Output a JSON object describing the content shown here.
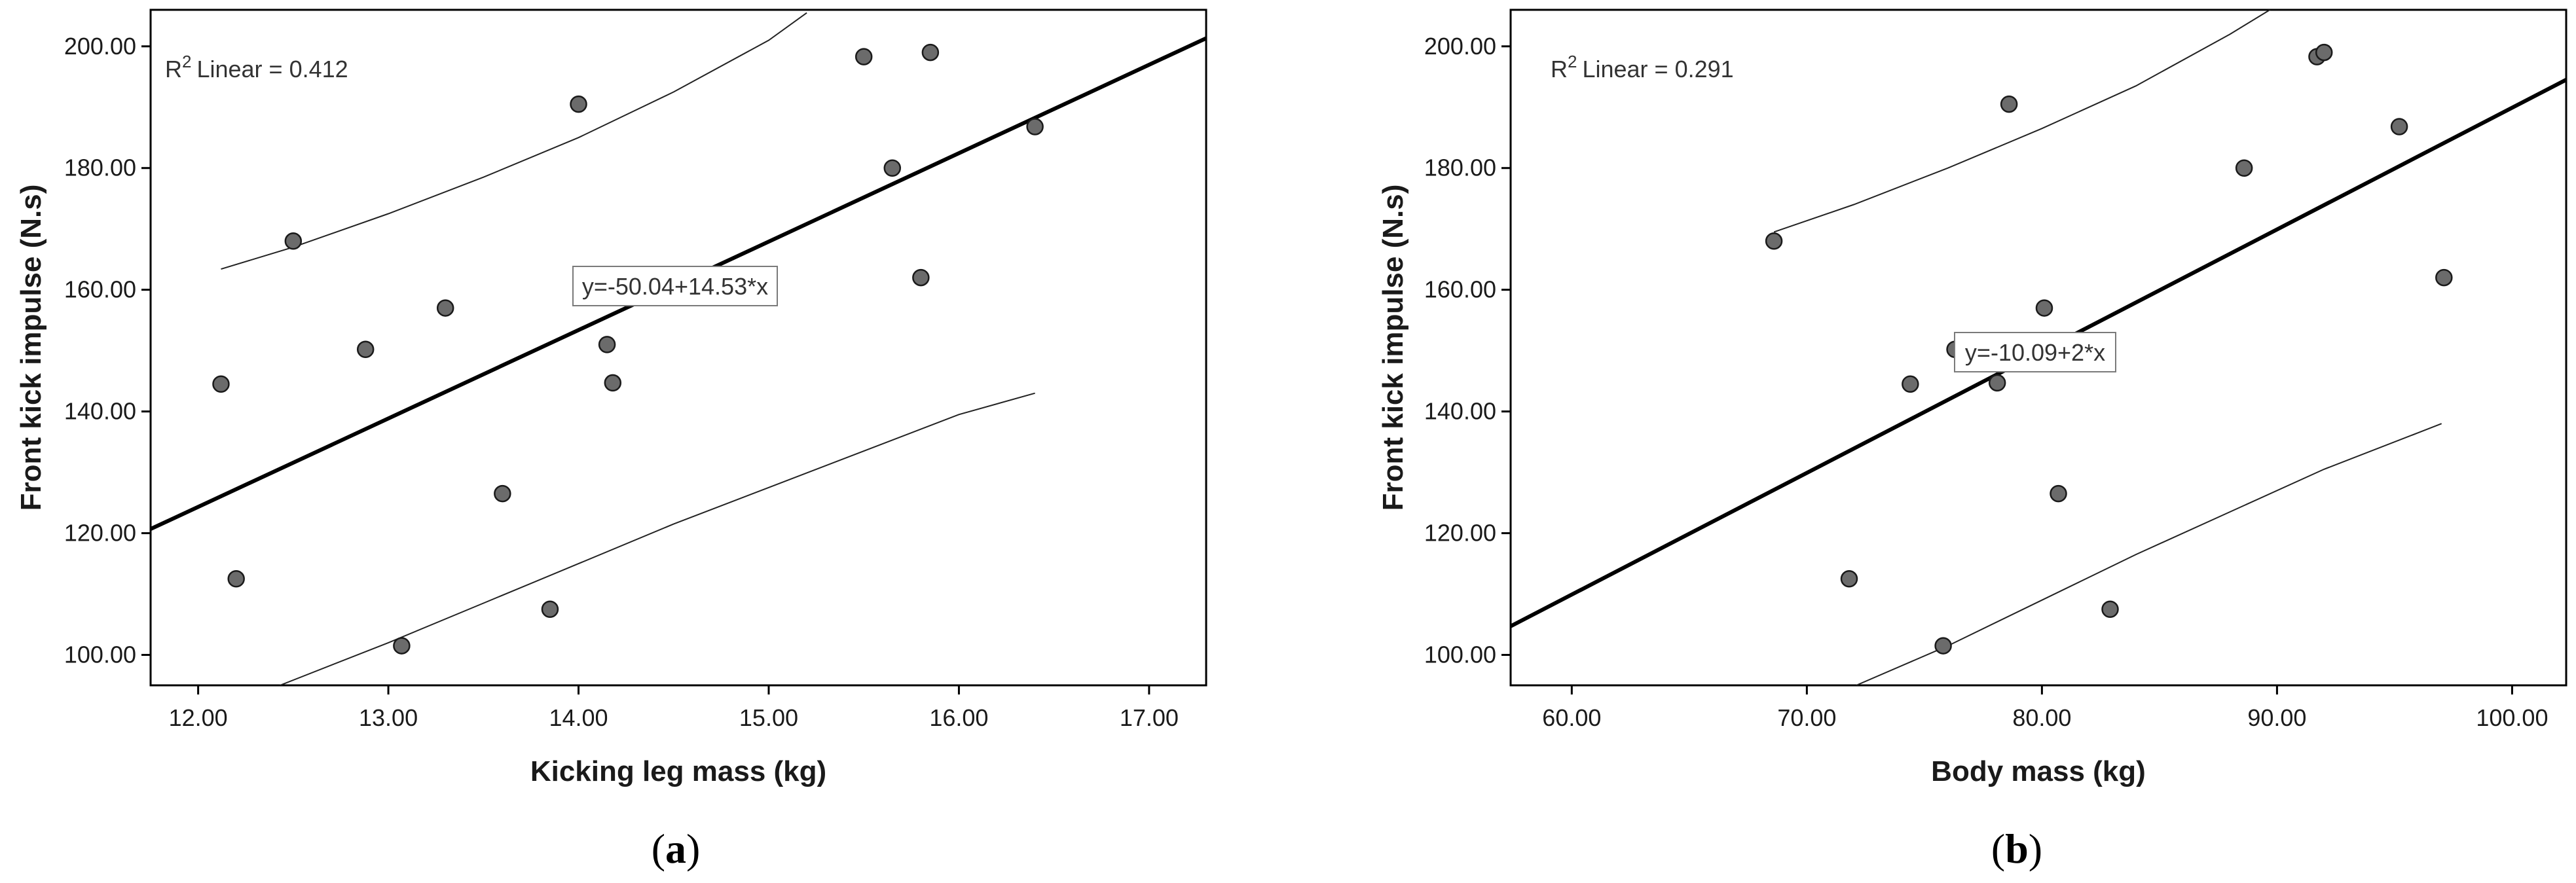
{
  "chart_data": [
    {
      "type": "scatter",
      "panel_label": "a",
      "xlabel": "Kicking leg mass (kg)",
      "ylabel": "Front kick impulse (N.s)",
      "xlim": [
        11.75,
        17.3
      ],
      "ylim": [
        95,
        206
      ],
      "x_ticks": [
        "12.00",
        "13.00",
        "14.00",
        "15.00",
        "16.00",
        "17.00"
      ],
      "y_ticks": [
        "100.00",
        "120.00",
        "140.00",
        "160.00",
        "180.00",
        "200.00"
      ],
      "r2_label": "Linear = 0.412",
      "equation_label": "y=-50.04+14.53*x",
      "fit": {
        "intercept": -50.04,
        "slope": 14.53
      },
      "ci_upper": [
        [
          12.12,
          163.4
        ],
        [
          12.5,
          167.0
        ],
        [
          13.0,
          172.5
        ],
        [
          13.5,
          178.5
        ],
        [
          14.0,
          185.0
        ],
        [
          14.5,
          192.5
        ],
        [
          15.0,
          201.0
        ],
        [
          15.2,
          205.5
        ]
      ],
      "ci_lower": [
        [
          12.43,
          95.0
        ],
        [
          13.0,
          102.0
        ],
        [
          13.5,
          108.5
        ],
        [
          14.0,
          115.0
        ],
        [
          14.5,
          121.5
        ],
        [
          15.0,
          127.5
        ],
        [
          15.5,
          133.5
        ],
        [
          16.0,
          139.5
        ],
        [
          16.4,
          143.0
        ]
      ],
      "points": [
        {
          "x": 12.12,
          "y": 144.5
        },
        {
          "x": 12.2,
          "y": 112.5
        },
        {
          "x": 12.5,
          "y": 168.0
        },
        {
          "x": 12.88,
          "y": 150.2
        },
        {
          "x": 13.07,
          "y": 101.5
        },
        {
          "x": 13.3,
          "y": 157.0
        },
        {
          "x": 13.6,
          "y": 126.5
        },
        {
          "x": 13.85,
          "y": 107.5
        },
        {
          "x": 14.0,
          "y": 190.5
        },
        {
          "x": 14.15,
          "y": 151.0
        },
        {
          "x": 14.18,
          "y": 144.7
        },
        {
          "x": 15.5,
          "y": 198.3
        },
        {
          "x": 15.65,
          "y": 180.0
        },
        {
          "x": 15.8,
          "y": 162.0
        },
        {
          "x": 15.85,
          "y": 199.0
        },
        {
          "x": 16.4,
          "y": 186.8
        }
      ]
    },
    {
      "type": "scatter",
      "panel_label": "b",
      "xlabel": "Body mass (kg)",
      "ylabel": "Front kick impulse (N.s)",
      "xlim": [
        57.4,
        102.3
      ],
      "ylim": [
        95,
        206
      ],
      "x_ticks": [
        "60.00",
        "70.00",
        "80.00",
        "90.00",
        "100.00"
      ],
      "y_ticks": [
        "100.00",
        "120.00",
        "140.00",
        "160.00",
        "180.00",
        "200.00"
      ],
      "r2_label": "Linear = 0.291",
      "equation_label": "y=-10.09+2*x",
      "fit": {
        "intercept": -10.09,
        "slope": 2.0
      },
      "ci_upper": [
        [
          68.6,
          169.5
        ],
        [
          72.0,
          174.0
        ],
        [
          76.0,
          180.0
        ],
        [
          80.0,
          186.5
        ],
        [
          84.0,
          193.5
        ],
        [
          88.0,
          202.0
        ],
        [
          89.7,
          206.0
        ]
      ],
      "ci_lower": [
        [
          72.1,
          95.0
        ],
        [
          76.0,
          101.5
        ],
        [
          80.0,
          109.0
        ],
        [
          84.0,
          116.5
        ],
        [
          88.0,
          123.5
        ],
        [
          92.0,
          130.5
        ],
        [
          96.0,
          136.5
        ],
        [
          97.0,
          138.0
        ]
      ],
      "points": [
        {
          "x": 68.6,
          "y": 168.0
        },
        {
          "x": 71.8,
          "y": 112.5
        },
        {
          "x": 74.4,
          "y": 144.5
        },
        {
          "x": 75.8,
          "y": 101.5
        },
        {
          "x": 76.3,
          "y": 150.2
        },
        {
          "x": 78.1,
          "y": 144.7
        },
        {
          "x": 78.6,
          "y": 190.5
        },
        {
          "x": 80.1,
          "y": 157.0
        },
        {
          "x": 80.7,
          "y": 126.5
        },
        {
          "x": 82.9,
          "y": 107.5
        },
        {
          "x": 88.6,
          "y": 180.0
        },
        {
          "x": 91.7,
          "y": 198.3
        },
        {
          "x": 92.0,
          "y": 199.0
        },
        {
          "x": 95.2,
          "y": 186.8
        },
        {
          "x": 97.1,
          "y": 162.0
        }
      ]
    }
  ]
}
